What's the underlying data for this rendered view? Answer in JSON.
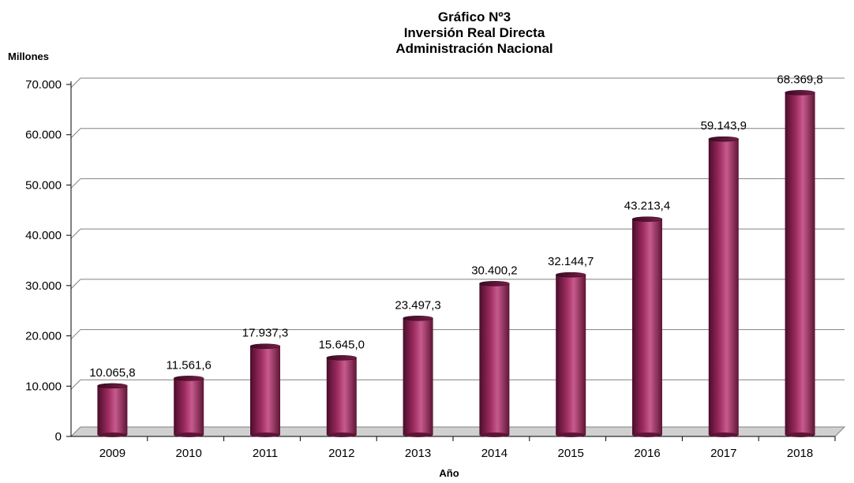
{
  "chart_data": {
    "type": "bar",
    "title_lines": [
      "Gráfico Nº3",
      "Inversión Real Directa",
      "Administración Nacional"
    ],
    "units_label": "Millones",
    "xlabel": "Año",
    "categories": [
      "2009",
      "2010",
      "2011",
      "2012",
      "2013",
      "2014",
      "2015",
      "2016",
      "2017",
      "2018"
    ],
    "values": [
      10065.8,
      11561.6,
      17937.3,
      15645.0,
      23497.3,
      30400.2,
      32144.7,
      43213.4,
      59143.9,
      68369.8
    ],
    "value_labels": [
      "10.065,8",
      "11.561,6",
      "17.937,3",
      "15.645,0",
      "23.497,3",
      "30.400,2",
      "32.144,7",
      "43.213,4",
      "59.143,9",
      "68.369,8"
    ],
    "y_ticks": [
      "0",
      "10.000",
      "20.000",
      "30.000",
      "40.000",
      "50.000",
      "60.000",
      "70.000"
    ],
    "y_tick_values": [
      0,
      10000,
      20000,
      30000,
      40000,
      50000,
      60000,
      70000
    ],
    "ylim": [
      0,
      70000
    ],
    "grid": true,
    "bar_color": "#9b2a5e",
    "bar_highlight": "#c75a8e",
    "bar_shadow": "#4a0d2a"
  }
}
